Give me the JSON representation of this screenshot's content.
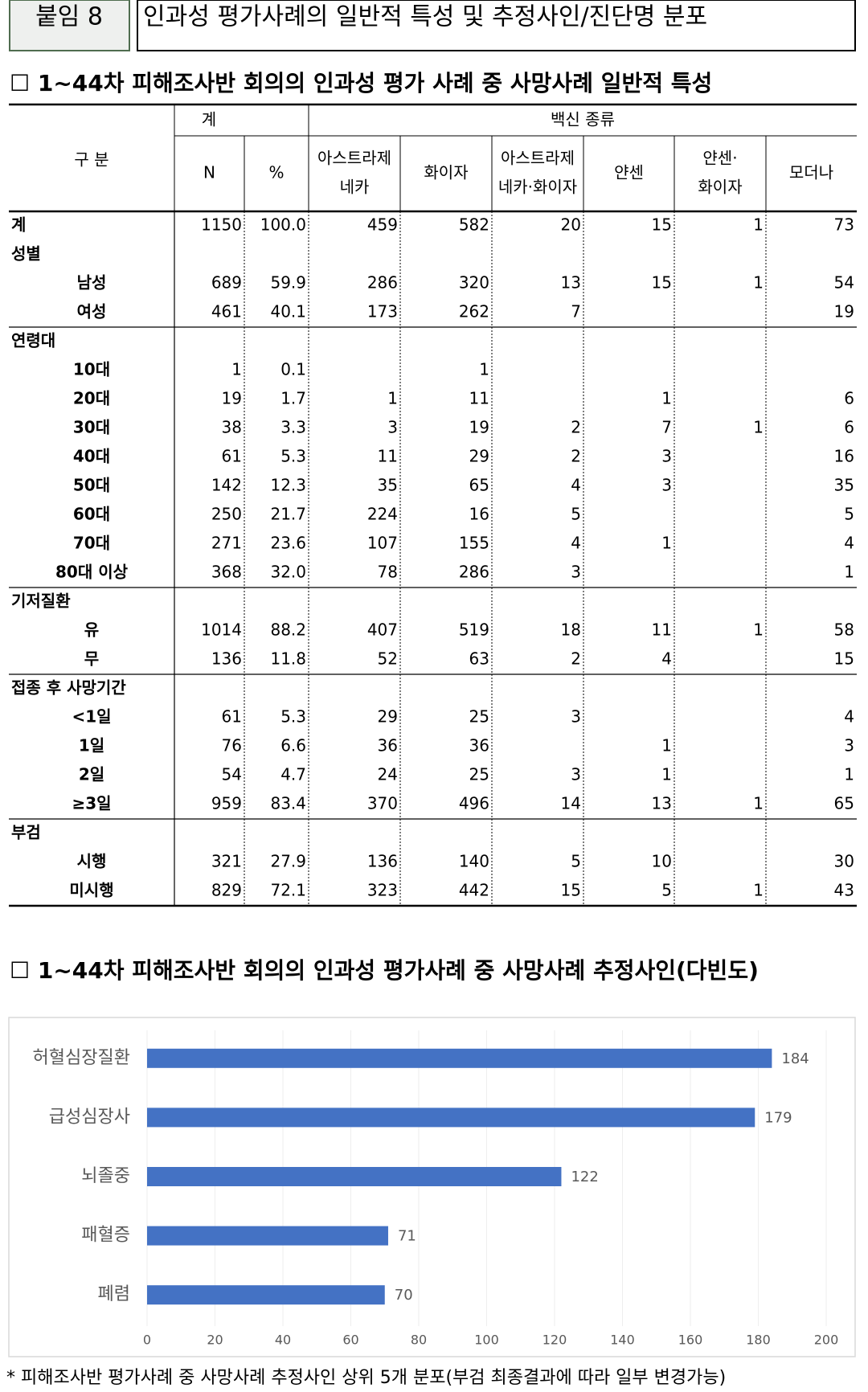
{
  "header": {
    "tag": "붙임 8",
    "title": "인과성 평가사례의 일반적 특성 및 추정사인/진단명 분포"
  },
  "headings": [
    "☐ 1~44차 피해조사반 회의의 인과성 평가 사례 중 사망사례 일반적 특성",
    "☐ 1~44차 피해조사반 회의의 인과성 평가사례 중 사망사례 추정사인(다빈도)"
  ],
  "table": {
    "stub": "구 분",
    "group_total": "계",
    "group_vaccine": "백신 종류",
    "columns": [
      "N",
      "%",
      [
        "아스트라제",
        "네카"
      ],
      "화이자",
      [
        "아스트라제",
        "네카·화이자"
      ],
      "얀센",
      [
        "얀센·",
        "화이자"
      ],
      "모더나"
    ],
    "total": {
      "label": "계",
      "cells": [
        "1150",
        "100.0",
        "459",
        "582",
        "20",
        "15",
        "1",
        "73"
      ]
    },
    "sections": [
      {
        "label": "성별",
        "rows": [
          {
            "label": "남성",
            "cells": [
              "689",
              "59.9",
              "286",
              "320",
              "13",
              "15",
              "1",
              "54"
            ]
          },
          {
            "label": "여성",
            "cells": [
              "461",
              "40.1",
              "173",
              "262",
              "7",
              null,
              null,
              "19"
            ]
          }
        ]
      },
      {
        "label": "연령대",
        "rows": [
          {
            "label": "10대",
            "cells": [
              "1",
              "0.1",
              null,
              "1",
              null,
              null,
              null,
              null
            ]
          },
          {
            "label": "20대",
            "cells": [
              "19",
              "1.7",
              "1",
              "11",
              null,
              "1",
              null,
              "6"
            ]
          },
          {
            "label": "30대",
            "cells": [
              "38",
              "3.3",
              "3",
              "19",
              "2",
              "7",
              "1",
              "6"
            ]
          },
          {
            "label": "40대",
            "cells": [
              "61",
              "5.3",
              "11",
              "29",
              "2",
              "3",
              null,
              "16"
            ]
          },
          {
            "label": "50대",
            "cells": [
              "142",
              "12.3",
              "35",
              "65",
              "4",
              "3",
              null,
              "35"
            ]
          },
          {
            "label": "60대",
            "cells": [
              "250",
              "21.7",
              "224",
              "16",
              "5",
              null,
              null,
              "5"
            ]
          },
          {
            "label": "70대",
            "cells": [
              "271",
              "23.6",
              "107",
              "155",
              "4",
              "1",
              null,
              "4"
            ]
          },
          {
            "label": "80대 이상",
            "cells": [
              "368",
              "32.0",
              "78",
              "286",
              "3",
              null,
              null,
              "1"
            ]
          }
        ]
      },
      {
        "label": "기저질환",
        "rows": [
          {
            "label": "유",
            "cells": [
              "1014",
              "88.2",
              "407",
              "519",
              "18",
              "11",
              "1",
              "58"
            ]
          },
          {
            "label": "무",
            "cells": [
              "136",
              "11.8",
              "52",
              "63",
              "2",
              "4",
              null,
              "15"
            ]
          }
        ]
      },
      {
        "label": "접종 후 사망기간",
        "rows": [
          {
            "label": "<1일",
            "cells": [
              "61",
              "5.3",
              "29",
              "25",
              "3",
              null,
              null,
              "4"
            ]
          },
          {
            "label": "1일",
            "cells": [
              "76",
              "6.6",
              "36",
              "36",
              null,
              "1",
              null,
              "3"
            ]
          },
          {
            "label": "2일",
            "cells": [
              "54",
              "4.7",
              "24",
              "25",
              "3",
              "1",
              null,
              "1"
            ]
          },
          {
            "label": "≥3일",
            "cells": [
              "959",
              "83.4",
              "370",
              "496",
              "14",
              "13",
              "1",
              "65"
            ]
          }
        ]
      },
      {
        "label": "부검",
        "rows": [
          {
            "label": "시행",
            "cells": [
              "321",
              "27.9",
              "136",
              "140",
              "5",
              "10",
              null,
              "30"
            ]
          },
          {
            "label": "미시행",
            "cells": [
              "829",
              "72.1",
              "323",
              "442",
              "15",
              "5",
              "1",
              "43"
            ]
          }
        ]
      }
    ]
  },
  "chart_data": {
    "type": "bar",
    "orientation": "horizontal",
    "categories": [
      "허혈심장질환",
      "급성심장사",
      "뇌졸중",
      "패혈증",
      "폐렴"
    ],
    "values": [
      184,
      179,
      122,
      71,
      70
    ],
    "color": "#4472c4",
    "xlim": [
      0,
      200
    ],
    "xticks": [
      0,
      20,
      40,
      60,
      80,
      100,
      120,
      140,
      160,
      180,
      200
    ],
    "grid": true
  },
  "footnote": "* 피해조사반 평가사례 중 사망사례 추정사인 상위 5개 분포(부검 최종결과에 따라 일부 변경가능)"
}
